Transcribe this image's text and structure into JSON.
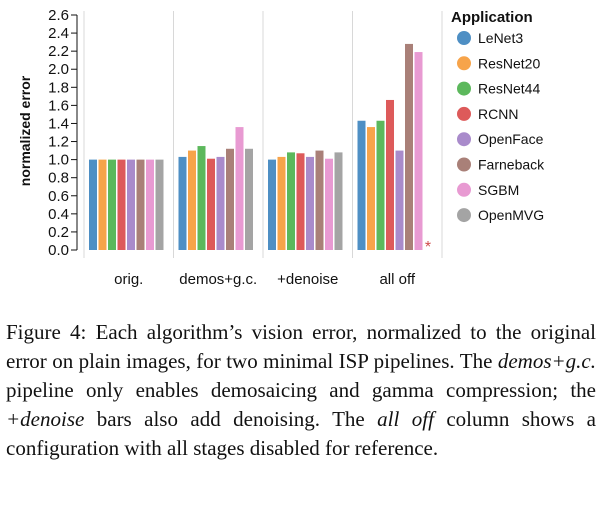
{
  "chart_data": {
    "type": "bar",
    "ylabel": "normalized error",
    "ylim": [
      0,
      2.6
    ],
    "yticks": [
      "0.0",
      "0.2",
      "0.4",
      "0.6",
      "0.8",
      "1.0",
      "1.2",
      "1.4",
      "1.6",
      "1.8",
      "2.0",
      "2.2",
      "2.4",
      "2.6"
    ],
    "categories": [
      "orig.",
      "demos+g.c.",
      "+denoise",
      "all off"
    ],
    "legend_title": "Application",
    "legend_position": "right",
    "series": [
      {
        "name": "LeNet3",
        "color": "#4e8fc4",
        "values": [
          1.0,
          1.03,
          1.0,
          1.43
        ]
      },
      {
        "name": "ResNet20",
        "color": "#f7a44a",
        "values": [
          1.0,
          1.1,
          1.03,
          1.36
        ]
      },
      {
        "name": "ResNet44",
        "color": "#5cb85c",
        "values": [
          1.0,
          1.15,
          1.08,
          1.43
        ]
      },
      {
        "name": "RCNN",
        "color": "#dd5a5a",
        "values": [
          1.0,
          1.01,
          1.07,
          1.66
        ]
      },
      {
        "name": "OpenFace",
        "color": "#a98bcb",
        "values": [
          1.0,
          1.03,
          1.03,
          1.1
        ]
      },
      {
        "name": "Farneback",
        "color": "#a98078",
        "values": [
          1.0,
          1.12,
          1.1,
          2.28
        ]
      },
      {
        "name": "SGBM",
        "color": "#e89ad2",
        "values": [
          1.0,
          1.36,
          1.01,
          2.19
        ]
      },
      {
        "name": "OpenMVG",
        "color": "#a4a4a4",
        "values": [
          1.0,
          1.12,
          1.08,
          null
        ]
      }
    ],
    "annotations": [
      {
        "text": "*",
        "category": "all off",
        "series": "OpenMVG",
        "color": "#d04c4c"
      }
    ]
  },
  "caption": {
    "label": "Figure 4:",
    "t1": " Each algorithm’s vision error, normalized to the original error on plain images, for two minimal ISP pipelines. The ",
    "e1": "demos+g.c.",
    "t2": " pipeline only enables demosaicing and gamma compression; the ",
    "e2": "+denoise",
    "t3": " bars also add denoising. The ",
    "e3": "all off",
    "t4": " column shows a configuration with all stages disabled for reference."
  }
}
